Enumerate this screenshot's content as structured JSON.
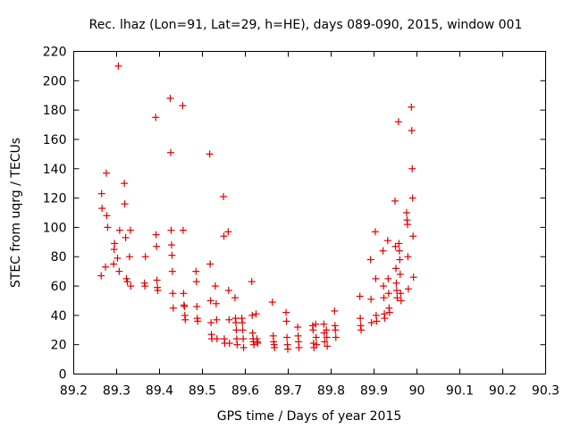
{
  "chart_data": {
    "type": "scatter",
    "title": "Rec. lhaz (Lon=91, Lat=29, h=HE), days 089-090, 2015, window 001",
    "xlabel": "GPS time / Days of year 2015",
    "ylabel": "STEC from uqrg / TECUs",
    "xlim": [
      89.2,
      90.3
    ],
    "ylim": [
      0,
      220
    ],
    "xticks": [
      "89.2",
      "89.3",
      "89.4",
      "89.5",
      "89.6",
      "89.7",
      "89.8",
      "89.9",
      "90",
      "90.1",
      "90.2",
      "90.3"
    ],
    "yticks": [
      "0",
      "20",
      "40",
      "60",
      "80",
      "100",
      "120",
      "140",
      "160",
      "180",
      "200",
      "220"
    ],
    "grid": false,
    "legend": "none",
    "marker": "plus",
    "color": "#e00000",
    "points": [
      [
        89.264,
        67
      ],
      [
        89.265,
        123
      ],
      [
        89.266,
        113
      ],
      [
        89.274,
        73
      ],
      [
        89.276,
        137
      ],
      [
        89.277,
        108
      ],
      [
        89.279,
        100
      ],
      [
        89.293,
        75
      ],
      [
        89.294,
        85
      ],
      [
        89.295,
        89
      ],
      [
        89.302,
        79
      ],
      [
        89.304,
        210
      ],
      [
        89.306,
        70
      ],
      [
        89.307,
        98
      ],
      [
        89.318,
        130
      ],
      [
        89.319,
        116
      ],
      [
        89.321,
        93
      ],
      [
        89.323,
        65
      ],
      [
        89.325,
        63
      ],
      [
        89.33,
        80
      ],
      [
        89.332,
        98
      ],
      [
        89.333,
        60
      ],
      [
        89.365,
        62
      ],
      [
        89.366,
        60
      ],
      [
        89.367,
        80
      ],
      [
        89.391,
        175
      ],
      [
        89.392,
        95
      ],
      [
        89.393,
        87
      ],
      [
        89.394,
        64
      ],
      [
        89.395,
        59
      ],
      [
        89.396,
        57
      ],
      [
        89.425,
        188
      ],
      [
        89.426,
        151
      ],
      [
        89.427,
        98
      ],
      [
        89.428,
        88
      ],
      [
        89.429,
        81
      ],
      [
        89.43,
        70
      ],
      [
        89.431,
        55
      ],
      [
        89.432,
        45
      ],
      [
        89.454,
        183
      ],
      [
        89.455,
        98
      ],
      [
        89.456,
        55
      ],
      [
        89.457,
        47
      ],
      [
        89.458,
        46
      ],
      [
        89.459,
        40
      ],
      [
        89.46,
        37
      ],
      [
        89.485,
        70
      ],
      [
        89.486,
        63
      ],
      [
        89.487,
        46
      ],
      [
        89.488,
        38
      ],
      [
        89.489,
        36
      ],
      [
        89.517,
        150
      ],
      [
        89.518,
        75
      ],
      [
        89.519,
        50
      ],
      [
        89.52,
        35
      ],
      [
        89.521,
        27
      ],
      [
        89.522,
        24
      ],
      [
        89.53,
        60
      ],
      [
        89.532,
        48
      ],
      [
        89.533,
        37
      ],
      [
        89.534,
        24
      ],
      [
        89.549,
        121
      ],
      [
        89.55,
        94
      ],
      [
        89.551,
        24
      ],
      [
        89.552,
        21
      ],
      [
        89.56,
        97
      ],
      [
        89.561,
        57
      ],
      [
        89.562,
        37
      ],
      [
        89.563,
        21
      ],
      [
        89.576,
        52
      ],
      [
        89.577,
        38
      ],
      [
        89.578,
        35
      ],
      [
        89.579,
        30
      ],
      [
        89.58,
        24
      ],
      [
        89.581,
        20
      ],
      [
        89.592,
        38
      ],
      [
        89.593,
        35
      ],
      [
        89.594,
        30
      ],
      [
        89.595,
        24
      ],
      [
        89.596,
        18
      ],
      [
        89.615,
        63
      ],
      [
        89.616,
        40
      ],
      [
        89.617,
        28
      ],
      [
        89.618,
        24
      ],
      [
        89.619,
        22
      ],
      [
        89.62,
        20
      ],
      [
        89.625,
        41
      ],
      [
        89.627,
        24
      ],
      [
        89.628,
        22
      ],
      [
        89.629,
        21
      ],
      [
        89.663,
        49
      ],
      [
        89.665,
        26
      ],
      [
        89.666,
        22
      ],
      [
        89.667,
        20
      ],
      [
        89.668,
        18
      ],
      [
        89.695,
        42
      ],
      [
        89.696,
        36
      ],
      [
        89.697,
        25
      ],
      [
        89.698,
        20
      ],
      [
        89.699,
        17
      ],
      [
        89.722,
        32
      ],
      [
        89.723,
        26
      ],
      [
        89.724,
        22
      ],
      [
        89.725,
        18
      ],
      [
        89.757,
        33
      ],
      [
        89.758,
        30
      ],
      [
        89.759,
        21
      ],
      [
        89.76,
        18
      ],
      [
        89.764,
        34
      ],
      [
        89.765,
        25
      ],
      [
        89.766,
        20
      ],
      [
        89.783,
        34
      ],
      [
        89.784,
        28
      ],
      [
        89.785,
        22
      ],
      [
        89.789,
        30
      ],
      [
        89.79,
        25
      ],
      [
        89.791,
        19
      ],
      [
        89.808,
        43
      ],
      [
        89.809,
        33
      ],
      [
        89.81,
        30
      ],
      [
        89.811,
        25
      ],
      [
        89.867,
        53
      ],
      [
        89.868,
        38
      ],
      [
        89.869,
        33
      ],
      [
        89.87,
        30
      ],
      [
        89.892,
        78
      ],
      [
        89.893,
        51
      ],
      [
        89.894,
        35
      ],
      [
        89.903,
        97
      ],
      [
        89.904,
        65
      ],
      [
        89.905,
        40
      ],
      [
        89.906,
        36
      ],
      [
        89.921,
        84
      ],
      [
        89.922,
        60
      ],
      [
        89.923,
        52
      ],
      [
        89.924,
        41
      ],
      [
        89.925,
        38
      ],
      [
        89.932,
        91
      ],
      [
        89.933,
        65
      ],
      [
        89.934,
        55
      ],
      [
        89.935,
        45
      ],
      [
        89.936,
        42
      ],
      [
        89.949,
        118
      ],
      [
        89.95,
        87
      ],
      [
        89.951,
        72
      ],
      [
        89.952,
        62
      ],
      [
        89.953,
        57
      ],
      [
        89.954,
        52
      ],
      [
        89.957,
        172
      ],
      [
        89.958,
        89
      ],
      [
        89.959,
        84
      ],
      [
        89.96,
        78
      ],
      [
        89.961,
        68
      ],
      [
        89.962,
        55
      ],
      [
        89.963,
        50
      ],
      [
        89.976,
        110
      ],
      [
        89.977,
        105
      ],
      [
        89.978,
        102
      ],
      [
        89.979,
        80
      ],
      [
        89.98,
        58
      ],
      [
        89.987,
        182
      ],
      [
        89.988,
        166
      ],
      [
        89.989,
        140
      ],
      [
        89.99,
        120
      ],
      [
        89.991,
        94
      ],
      [
        89.992,
        66
      ]
    ]
  }
}
